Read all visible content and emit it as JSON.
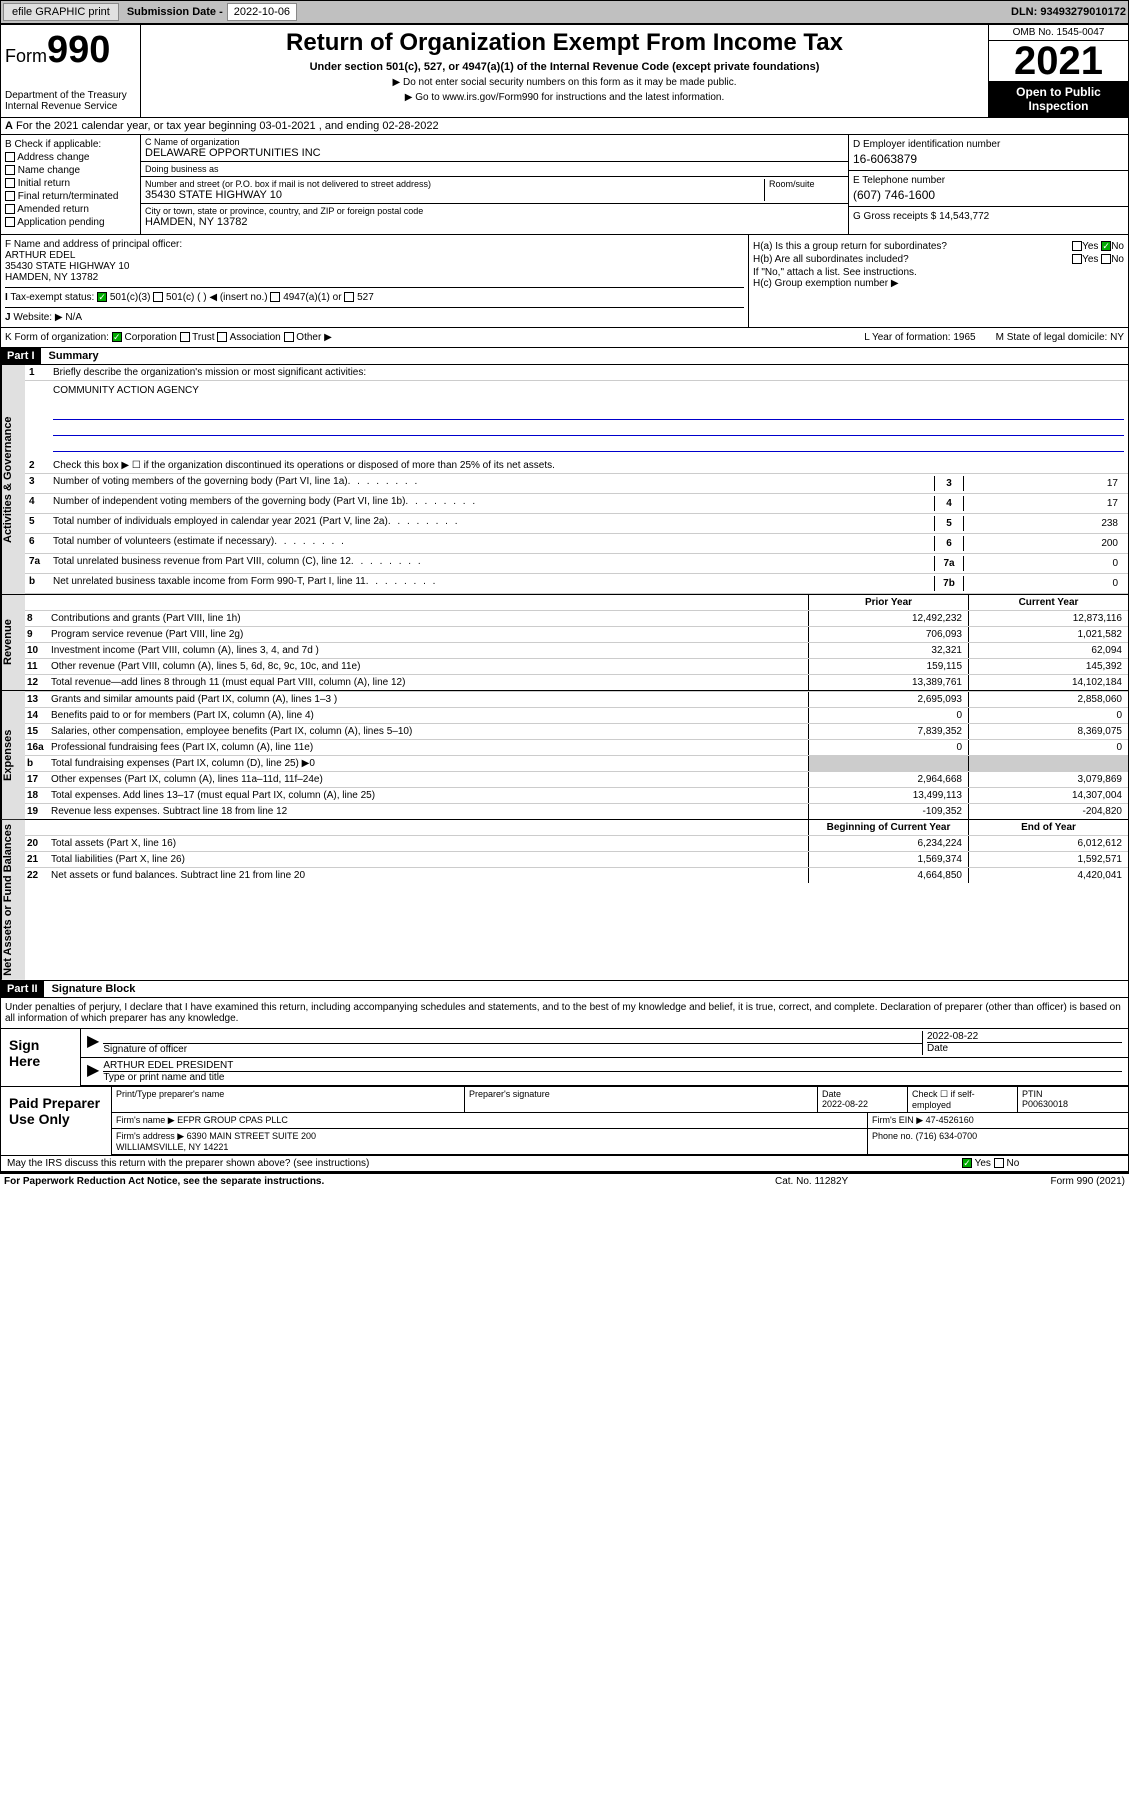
{
  "topbar": {
    "efile": "efile GRAPHIC print",
    "sub_lbl": "Submission Date -",
    "sub_val": "2022-10-06",
    "dln": "DLN: 93493279010172"
  },
  "header": {
    "form": "Form",
    "num": "990",
    "dept": "Department of the Treasury Internal Revenue Service",
    "title": "Return of Organization Exempt From Income Tax",
    "sub": "Under section 501(c), 527, or 4947(a)(1) of the Internal Revenue Code (except private foundations)",
    "note1": "▶ Do not enter social security numbers on this form as it may be made public.",
    "note2": "▶ Go to www.irs.gov/Form990 for instructions and the latest information.",
    "omb": "OMB No. 1545-0047",
    "year": "2021",
    "open": "Open to Public Inspection"
  },
  "rowA": {
    "text": "For the 2021 calendar year, or tax year beginning 03-01-2021 , and ending 02-28-2022"
  },
  "colB": {
    "lbl": "B Check if applicable:",
    "items": [
      "Address change",
      "Name change",
      "Initial return",
      "Final return/terminated",
      "Amended return",
      "Application pending"
    ]
  },
  "colC": {
    "name_lbl": "C Name of organization",
    "name": "DELAWARE OPPORTUNITIES INC",
    "dba_lbl": "Doing business as",
    "dba": "",
    "addr_lbl": "Number and street (or P.O. box if mail is not delivered to street address)",
    "addr": "35430 STATE HIGHWAY 10",
    "room_lbl": "Room/suite",
    "city_lbl": "City or town, state or province, country, and ZIP or foreign postal code",
    "city": "HAMDEN, NY  13782"
  },
  "colD": {
    "ein_lbl": "D Employer identification number",
    "ein": "16-6063879",
    "tel_lbl": "E Telephone number",
    "tel": "(607) 746-1600",
    "gross_lbl": "G Gross receipts $",
    "gross": "14,543,772"
  },
  "rowF": {
    "lbl": "F  Name and address of principal officer:",
    "name": "ARTHUR EDEL",
    "addr": "35430 STATE HIGHWAY 10",
    "city": "HAMDEN, NY  13782"
  },
  "rowH": {
    "ha": "H(a)  Is this a group return for subordinates?",
    "hb": "H(b)  Are all subordinates included?",
    "hb_note": "If \"No,\" attach a list. See instructions.",
    "hc": "H(c)  Group exemption number ▶",
    "yes": "Yes",
    "no": "No"
  },
  "rowI": {
    "lbl": "Tax-exempt status:",
    "opts": [
      "501(c)(3)",
      "501(c) (  ) ◀ (insert no.)",
      "4947(a)(1) or",
      "527"
    ]
  },
  "rowJ": {
    "lbl": "Website: ▶",
    "val": "N/A"
  },
  "rowK": {
    "lbl": "K Form of organization:",
    "opts": [
      "Corporation",
      "Trust",
      "Association",
      "Other ▶"
    ],
    "l_lbl": "L Year of formation:",
    "l_val": "1965",
    "m_lbl": "M State of legal domicile:",
    "m_val": "NY"
  },
  "part1": {
    "hdr": "Part I",
    "title": "Summary",
    "vtab_gov": "Activities & Governance",
    "vtab_rev": "Revenue",
    "vtab_exp": "Expenses",
    "vtab_net": "Net Assets or Fund Balances",
    "line1": "Briefly describe the organization's mission or most significant activities:",
    "mission": "COMMUNITY ACTION AGENCY",
    "line2": "Check this box ▶ ☐  if the organization discontinued its operations or disposed of more than 25% of its net assets.",
    "lines_single": [
      {
        "n": "3",
        "t": "Number of voting members of the governing body (Part VI, line 1a)",
        "v": "17"
      },
      {
        "n": "4",
        "t": "Number of independent voting members of the governing body (Part VI, line 1b)",
        "v": "17"
      },
      {
        "n": "5",
        "t": "Total number of individuals employed in calendar year 2021 (Part V, line 2a)",
        "v": "238"
      },
      {
        "n": "6",
        "t": "Total number of volunteers (estimate if necessary)",
        "v": "200"
      },
      {
        "n": "7a",
        "t": "Total unrelated business revenue from Part VIII, column (C), line 12",
        "v": "0"
      },
      {
        "n": "b",
        "t": "Net unrelated business taxable income from Form 990-T, Part I, line 11",
        "box": "7b",
        "v": "0"
      }
    ],
    "col_hdr1": "Prior Year",
    "col_hdr2": "Current Year",
    "rev_lines": [
      {
        "n": "8",
        "t": "Contributions and grants (Part VIII, line 1h)",
        "v1": "12,492,232",
        "v2": "12,873,116"
      },
      {
        "n": "9",
        "t": "Program service revenue (Part VIII, line 2g)",
        "v1": "706,093",
        "v2": "1,021,582"
      },
      {
        "n": "10",
        "t": "Investment income (Part VIII, column (A), lines 3, 4, and 7d )",
        "v1": "32,321",
        "v2": "62,094"
      },
      {
        "n": "11",
        "t": "Other revenue (Part VIII, column (A), lines 5, 6d, 8c, 9c, 10c, and 11e)",
        "v1": "159,115",
        "v2": "145,392"
      },
      {
        "n": "12",
        "t": "Total revenue—add lines 8 through 11 (must equal Part VIII, column (A), line 12)",
        "v1": "13,389,761",
        "v2": "14,102,184"
      }
    ],
    "exp_lines": [
      {
        "n": "13",
        "t": "Grants and similar amounts paid (Part IX, column (A), lines 1–3 )",
        "v1": "2,695,093",
        "v2": "2,858,060"
      },
      {
        "n": "14",
        "t": "Benefits paid to or for members (Part IX, column (A), line 4)",
        "v1": "0",
        "v2": "0"
      },
      {
        "n": "15",
        "t": "Salaries, other compensation, employee benefits (Part IX, column (A), lines 5–10)",
        "v1": "7,839,352",
        "v2": "8,369,075"
      },
      {
        "n": "16a",
        "t": "Professional fundraising fees (Part IX, column (A), line 11e)",
        "v1": "0",
        "v2": "0"
      },
      {
        "n": "b",
        "t": "Total fundraising expenses (Part IX, column (D), line 25) ▶0",
        "v1": "",
        "v2": "",
        "shade": true
      },
      {
        "n": "17",
        "t": "Other expenses (Part IX, column (A), lines 11a–11d, 11f–24e)",
        "v1": "2,964,668",
        "v2": "3,079,869"
      },
      {
        "n": "18",
        "t": "Total expenses. Add lines 13–17 (must equal Part IX, column (A), line 25)",
        "v1": "13,499,113",
        "v2": "14,307,004"
      },
      {
        "n": "19",
        "t": "Revenue less expenses. Subtract line 18 from line 12",
        "v1": "-109,352",
        "v2": "-204,820"
      }
    ],
    "net_hdr1": "Beginning of Current Year",
    "net_hdr2": "End of Year",
    "net_lines": [
      {
        "n": "20",
        "t": "Total assets (Part X, line 16)",
        "v1": "6,234,224",
        "v2": "6,012,612"
      },
      {
        "n": "21",
        "t": "Total liabilities (Part X, line 26)",
        "v1": "1,569,374",
        "v2": "1,592,571"
      },
      {
        "n": "22",
        "t": "Net assets or fund balances. Subtract line 21 from line 20",
        "v1": "4,664,850",
        "v2": "4,420,041"
      }
    ]
  },
  "part2": {
    "hdr": "Part II",
    "title": "Signature Block",
    "decl": "Under penalties of perjury, I declare that I have examined this return, including accompanying schedules and statements, and to the best of my knowledge and belief, it is true, correct, and complete. Declaration of preparer (other than officer) is based on all information of which preparer has any knowledge.",
    "sign_lbl": "Sign Here",
    "sig_of": "Signature of officer",
    "sig_date": "2022-08-22",
    "date_lbl": "Date",
    "officer": "ARTHUR EDEL PRESIDENT",
    "type_lbl": "Type or print name and title",
    "paid_lbl": "Paid Preparer Use Only",
    "prep_hdr": [
      "Print/Type preparer's name",
      "Preparer's signature",
      "Date",
      "Check ☐ if self-employed",
      "PTIN"
    ],
    "prep_vals": [
      "",
      "",
      "2022-08-22",
      "",
      "P00630018"
    ],
    "firm_name_lbl": "Firm's name   ▶",
    "firm_name": "EFPR GROUP CPAS PLLC",
    "firm_ein_lbl": "Firm's EIN ▶",
    "firm_ein": "47-4526160",
    "firm_addr_lbl": "Firm's address ▶",
    "firm_addr1": "6390 MAIN STREET SUITE 200",
    "firm_addr2": "WILLIAMSVILLE, NY  14221",
    "firm_phone_lbl": "Phone no.",
    "firm_phone": "(716) 634-0700",
    "discuss": "May the IRS discuss this return with the preparer shown above? (see instructions)"
  },
  "footer": {
    "f1": "For Paperwork Reduction Act Notice, see the separate instructions.",
    "f2": "Cat. No. 11282Y",
    "f3": "Form 990 (2021)"
  }
}
